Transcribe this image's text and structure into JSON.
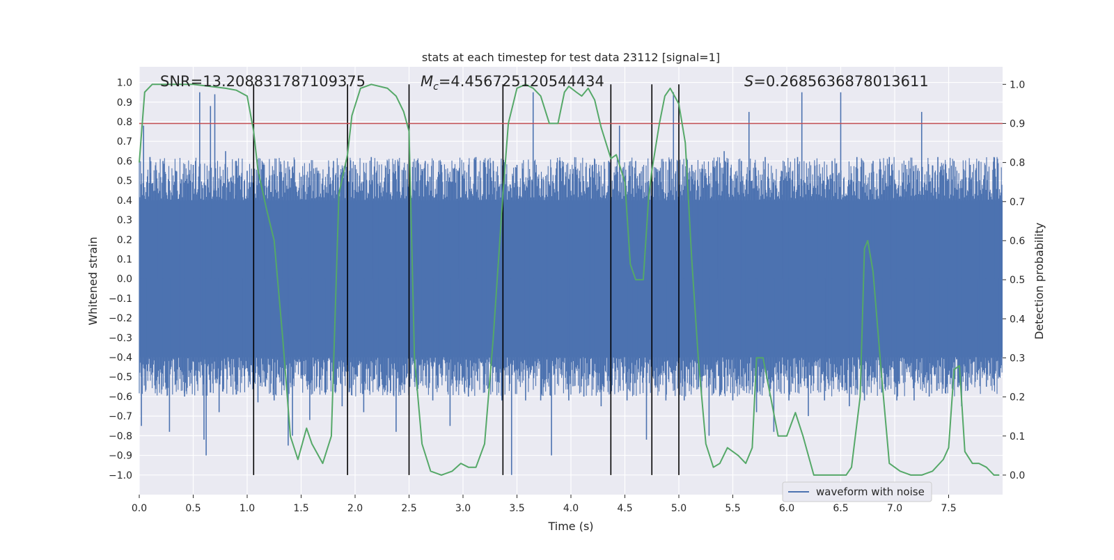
{
  "chart_data": {
    "type": "line",
    "title": "stats at each timestep for test data 23112 [signal=1]",
    "xlabel": "Time (s)",
    "ylabel_left": "Whitened strain",
    "ylabel_right": "Detection probability",
    "xlim": [
      0.0,
      8.0
    ],
    "ylim_left": [
      -1.1,
      1.08
    ],
    "ylim_right": [
      -0.05,
      1.045
    ],
    "x_ticks": [
      0.0,
      0.5,
      1.0,
      1.5,
      2.0,
      2.5,
      3.0,
      3.5,
      4.0,
      4.5,
      5.0,
      5.5,
      6.0,
      6.5,
      7.0,
      7.5
    ],
    "x_tick_labels": [
      "0.0",
      "0.5",
      "1.0",
      "1.5",
      "2.0",
      "2.5",
      "3.0",
      "3.5",
      "4.0",
      "4.5",
      "5.0",
      "5.5",
      "6.0",
      "6.5",
      "7.0",
      "7.5"
    ],
    "y_left_ticks": [
      -1.0,
      -0.9,
      -0.8,
      -0.7,
      -0.6,
      -0.5,
      -0.4,
      -0.3,
      -0.2,
      -0.1,
      0.0,
      0.1,
      0.2,
      0.3,
      0.4,
      0.5,
      0.6,
      0.7,
      0.8,
      0.9,
      1.0
    ],
    "y_left_tick_labels": [
      "−1.0",
      "−0.9",
      "−0.8",
      "−0.7",
      "−0.6",
      "−0.5",
      "−0.4",
      "−0.3",
      "−0.2",
      "−0.1",
      "0.0",
      "0.1",
      "0.2",
      "0.3",
      "0.4",
      "0.5",
      "0.6",
      "0.7",
      "0.8",
      "0.9",
      "1.0"
    ],
    "y_right_ticks": [
      0.0,
      0.1,
      0.2,
      0.3,
      0.4,
      0.5,
      0.6,
      0.7,
      0.8,
      0.9,
      1.0
    ],
    "y_right_tick_labels": [
      "0.0",
      "0.1",
      "0.2",
      "0.3",
      "0.4",
      "0.5",
      "0.6",
      "0.7",
      "0.8",
      "0.9",
      "1.0"
    ],
    "grid": true,
    "legend": {
      "position": "lower-right",
      "entries": [
        "waveform with noise"
      ]
    },
    "annotations": {
      "snr": "SNR=13.208831787109375",
      "mc_symbol": "M",
      "mc_subscript": "c",
      "mc_value": "=4.456725120544434",
      "s_symbol": "S",
      "s_value": "=0.2685636878013611"
    },
    "threshold": {
      "axis": "right",
      "value": 0.9,
      "color": "#c44e52"
    },
    "vertical_markers_x": [
      1.06,
      1.93,
      2.5,
      3.37,
      4.37,
      4.75,
      5.0
    ],
    "waveform": {
      "name": "waveform with noise",
      "color": "#4c72b0",
      "dense_band": [
        -0.4,
        0.4
      ],
      "spikes": [
        {
          "t": 0.02,
          "v": -0.75
        },
        {
          "t": 0.04,
          "v": 0.78
        },
        {
          "t": 0.06,
          "v": -0.56
        },
        {
          "t": 0.1,
          "v": 0.62
        },
        {
          "t": 0.17,
          "v": -0.5
        },
        {
          "t": 0.22,
          "v": 0.6
        },
        {
          "t": 0.28,
          "v": -0.78
        },
        {
          "t": 0.34,
          "v": 0.55
        },
        {
          "t": 0.42,
          "v": -0.6
        },
        {
          "t": 0.5,
          "v": 0.58
        },
        {
          "t": 0.56,
          "v": 0.95
        },
        {
          "t": 0.6,
          "v": -0.82
        },
        {
          "t": 0.62,
          "v": -0.9
        },
        {
          "t": 0.66,
          "v": 0.88
        },
        {
          "t": 0.7,
          "v": 0.94
        },
        {
          "t": 0.74,
          "v": -0.68
        },
        {
          "t": 0.8,
          "v": 0.65
        },
        {
          "t": 0.85,
          "v": -0.55
        },
        {
          "t": 0.9,
          "v": 0.6
        },
        {
          "t": 0.95,
          "v": -0.5
        },
        {
          "t": 1.0,
          "v": 0.55
        },
        {
          "t": 1.1,
          "v": -0.63
        },
        {
          "t": 1.15,
          "v": 0.58
        },
        {
          "t": 1.25,
          "v": -0.62
        },
        {
          "t": 1.32,
          "v": 0.5
        },
        {
          "t": 1.38,
          "v": -0.85
        },
        {
          "t": 1.42,
          "v": -0.8
        },
        {
          "t": 1.5,
          "v": 0.52
        },
        {
          "t": 1.58,
          "v": -0.72
        },
        {
          "t": 1.65,
          "v": 0.55
        },
        {
          "t": 1.72,
          "v": -0.58
        },
        {
          "t": 1.8,
          "v": 0.6
        },
        {
          "t": 1.88,
          "v": -0.65
        },
        {
          "t": 2.0,
          "v": 0.58
        },
        {
          "t": 2.08,
          "v": -0.68
        },
        {
          "t": 2.15,
          "v": 0.62
        },
        {
          "t": 2.22,
          "v": -0.55
        },
        {
          "t": 2.3,
          "v": 0.6
        },
        {
          "t": 2.38,
          "v": -0.78
        },
        {
          "t": 2.45,
          "v": 0.55
        },
        {
          "t": 2.58,
          "v": -0.55
        },
        {
          "t": 2.65,
          "v": 0.6
        },
        {
          "t": 2.72,
          "v": -0.62
        },
        {
          "t": 2.8,
          "v": 0.58
        },
        {
          "t": 2.88,
          "v": -0.75
        },
        {
          "t": 2.95,
          "v": 0.55
        },
        {
          "t": 3.05,
          "v": -0.6
        },
        {
          "t": 3.12,
          "v": 0.62
        },
        {
          "t": 3.2,
          "v": -0.58
        },
        {
          "t": 3.28,
          "v": 0.6
        },
        {
          "t": 3.36,
          "v": -0.62
        },
        {
          "t": 3.45,
          "v": -1.0
        },
        {
          "t": 3.5,
          "v": 0.58
        },
        {
          "t": 3.58,
          "v": -0.62
        },
        {
          "t": 3.65,
          "v": 0.95
        },
        {
          "t": 3.72,
          "v": -0.62
        },
        {
          "t": 3.82,
          "v": -0.9
        },
        {
          "t": 3.9,
          "v": 0.6
        },
        {
          "t": 3.98,
          "v": -0.62
        },
        {
          "t": 4.05,
          "v": 0.55
        },
        {
          "t": 4.12,
          "v": -0.6
        },
        {
          "t": 4.2,
          "v": 0.58
        },
        {
          "t": 4.28,
          "v": -0.65
        },
        {
          "t": 4.35,
          "v": 0.6
        },
        {
          "t": 4.45,
          "v": 0.78
        },
        {
          "t": 4.52,
          "v": -0.62
        },
        {
          "t": 4.6,
          "v": 0.6
        },
        {
          "t": 4.7,
          "v": -0.82
        },
        {
          "t": 4.82,
          "v": 0.55
        },
        {
          "t": 4.88,
          "v": -0.62
        },
        {
          "t": 4.95,
          "v": 0.95
        },
        {
          "t": 5.05,
          "v": -0.62
        },
        {
          "t": 5.12,
          "v": 0.58
        },
        {
          "t": 5.2,
          "v": -0.55
        },
        {
          "t": 5.28,
          "v": -0.8
        },
        {
          "t": 5.35,
          "v": 0.6
        },
        {
          "t": 5.42,
          "v": 0.65
        },
        {
          "t": 5.5,
          "v": -0.62
        },
        {
          "t": 5.58,
          "v": 0.6
        },
        {
          "t": 5.65,
          "v": 0.85
        },
        {
          "t": 5.72,
          "v": -0.68
        },
        {
          "t": 5.8,
          "v": 0.62
        },
        {
          "t": 5.88,
          "v": -0.78
        },
        {
          "t": 5.95,
          "v": 0.55
        },
        {
          "t": 6.02,
          "v": -0.62
        },
        {
          "t": 6.1,
          "v": 0.62
        },
        {
          "t": 6.14,
          "v": 0.95
        },
        {
          "t": 6.2,
          "v": -0.7
        },
        {
          "t": 6.28,
          "v": 0.58
        },
        {
          "t": 6.35,
          "v": -0.62
        },
        {
          "t": 6.42,
          "v": 0.6
        },
        {
          "t": 6.5,
          "v": 0.95
        },
        {
          "t": 6.58,
          "v": -0.65
        },
        {
          "t": 6.65,
          "v": 0.62
        },
        {
          "t": 6.72,
          "v": -0.62
        },
        {
          "t": 6.8,
          "v": 0.6
        },
        {
          "t": 6.88,
          "v": -0.58
        },
        {
          "t": 6.95,
          "v": 0.62
        },
        {
          "t": 7.02,
          "v": -0.62
        },
        {
          "t": 7.1,
          "v": 0.58
        },
        {
          "t": 7.18,
          "v": -0.62
        },
        {
          "t": 7.25,
          "v": 0.85
        },
        {
          "t": 7.32,
          "v": -0.6
        },
        {
          "t": 7.4,
          "v": 0.62
        },
        {
          "t": 7.48,
          "v": -0.55
        },
        {
          "t": 7.55,
          "v": 0.6
        },
        {
          "t": 7.62,
          "v": -0.65
        },
        {
          "t": 7.7,
          "v": 0.58
        },
        {
          "t": 7.78,
          "v": 0.6
        },
        {
          "t": 7.85,
          "v": -0.55
        },
        {
          "t": 7.92,
          "v": 0.62
        },
        {
          "t": 7.97,
          "v": -0.5
        }
      ]
    },
    "probability": {
      "name": "detection probability",
      "color": "#55a868",
      "x": [
        0.0,
        0.05,
        0.12,
        0.25,
        0.5,
        0.8,
        0.9,
        1.0,
        1.06,
        1.1,
        1.18,
        1.25,
        1.33,
        1.4,
        1.47,
        1.55,
        1.6,
        1.7,
        1.78,
        1.85,
        1.93,
        1.97,
        2.05,
        2.15,
        2.3,
        2.38,
        2.45,
        2.5,
        2.55,
        2.62,
        2.7,
        2.8,
        2.9,
        2.98,
        3.05,
        3.12,
        3.2,
        3.28,
        3.37,
        3.42,
        3.5,
        3.58,
        3.65,
        3.72,
        3.8,
        3.88,
        3.94,
        3.98,
        4.05,
        4.1,
        4.16,
        4.22,
        4.28,
        4.37,
        4.42,
        4.5,
        4.55,
        4.6,
        4.67,
        4.72,
        4.75,
        4.82,
        4.87,
        4.92,
        5.0,
        5.06,
        5.12,
        5.18,
        5.25,
        5.32,
        5.38,
        5.45,
        5.55,
        5.62,
        5.68,
        5.72,
        5.78,
        5.85,
        5.92,
        6.0,
        6.08,
        6.15,
        6.25,
        6.35,
        6.45,
        6.55,
        6.6,
        6.68,
        6.72,
        6.75,
        6.8,
        6.88,
        6.95,
        7.05,
        7.15,
        7.25,
        7.35,
        7.45,
        7.5,
        7.55,
        7.6,
        7.65,
        7.72,
        7.78,
        7.85,
        7.92,
        7.97
      ],
      "y": [
        0.8,
        0.98,
        1.0,
        1.0,
        1.0,
        0.99,
        0.985,
        0.97,
        0.88,
        0.78,
        0.68,
        0.6,
        0.35,
        0.1,
        0.04,
        0.12,
        0.08,
        0.03,
        0.1,
        0.72,
        0.82,
        0.92,
        0.99,
        1.0,
        0.99,
        0.97,
        0.93,
        0.88,
        0.3,
        0.08,
        0.01,
        0.0,
        0.01,
        0.03,
        0.02,
        0.02,
        0.08,
        0.35,
        0.72,
        0.9,
        0.99,
        1.0,
        0.99,
        0.97,
        0.9,
        0.9,
        0.98,
        0.995,
        0.98,
        0.97,
        0.99,
        0.96,
        0.89,
        0.81,
        0.82,
        0.75,
        0.54,
        0.5,
        0.5,
        0.71,
        0.78,
        0.9,
        0.97,
        0.99,
        0.95,
        0.85,
        0.55,
        0.3,
        0.08,
        0.02,
        0.03,
        0.07,
        0.05,
        0.03,
        0.07,
        0.3,
        0.3,
        0.2,
        0.1,
        0.1,
        0.16,
        0.1,
        0.0,
        0.0,
        0.0,
        0.0,
        0.02,
        0.2,
        0.58,
        0.6,
        0.52,
        0.25,
        0.03,
        0.01,
        0.0,
        0.0,
        0.01,
        0.04,
        0.07,
        0.27,
        0.28,
        0.06,
        0.03,
        0.03,
        0.02,
        0.0,
        0.0
      ]
    }
  }
}
